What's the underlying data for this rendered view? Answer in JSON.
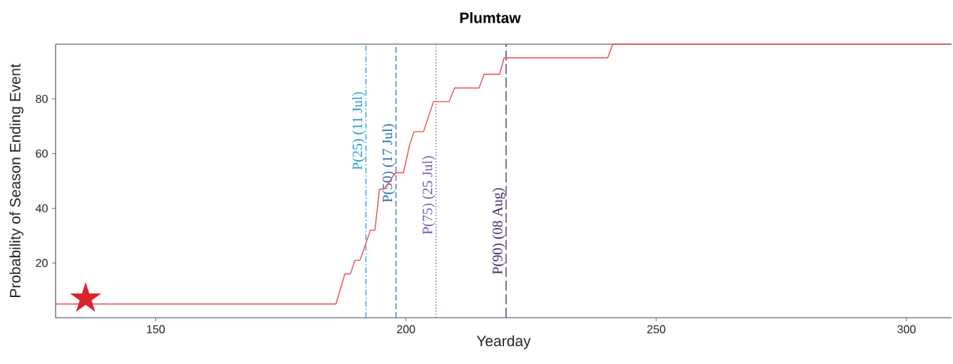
{
  "chart_data": {
    "type": "line",
    "title": "Plumtaw",
    "xlabel": "Yearday",
    "ylabel": "Probability of Season Ending Event",
    "xlim": [
      130,
      309
    ],
    "ylim": [
      0,
      100
    ],
    "xticks": [
      150,
      200,
      250,
      300
    ],
    "yticks": [
      20,
      40,
      60,
      80
    ],
    "series": [
      {
        "color": "#f0484a",
        "x": [
          130,
          186,
          187.8,
          188.9,
          189.8,
          190.8,
          192.9,
          193.8,
          194.7,
          195.6,
          197.9,
          199.5,
          200.7,
          201.6,
          203.5,
          205.5,
          208.6,
          209.7,
          214.6,
          215.6,
          218.7,
          219.6,
          240.3,
          241.3,
          309
        ],
        "values": [
          5,
          5,
          16,
          16,
          21,
          21,
          32,
          32,
          47,
          47,
          53,
          53,
          63,
          68,
          68,
          79,
          79,
          84,
          84,
          89,
          89,
          95,
          95,
          100,
          100
        ]
      },
      {
        "type": "scatter",
        "color": "#d9262c",
        "marker": "star",
        "x": [
          136
        ],
        "values": [
          7
        ]
      }
    ],
    "ref_lines": [
      {
        "axis": "x",
        "value": 192,
        "label": "P(25) (11 Jul)",
        "color": "#1f9bd7",
        "line_style": "dashdot"
      },
      {
        "axis": "x",
        "value": 198,
        "label": "P(50) (17 Jul)",
        "color": "#2f6fb4",
        "line_style": "dashed"
      },
      {
        "axis": "x",
        "value": 206,
        "label": "P(75) (25 Jul)",
        "color": "#6a5cb0",
        "line_style": "dotted"
      },
      {
        "axis": "x",
        "value": 220,
        "label": "P(90) (08 Aug)",
        "color": "#42286e",
        "line_style": "longdashed"
      }
    ]
  }
}
